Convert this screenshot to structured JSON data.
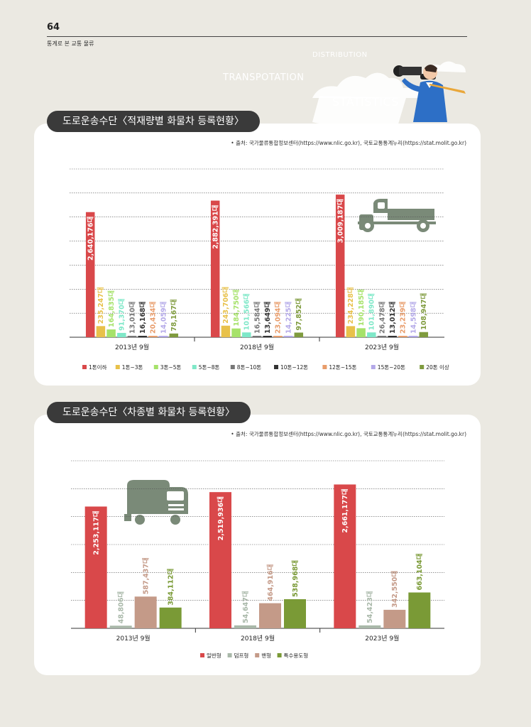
{
  "header": {
    "page_number": "64",
    "subtitle": "통계로 본 교통 물류"
  },
  "decoration": {
    "word1": "DISTRIBUTION",
    "word2": "TRANSPOTATION",
    "word3": "STATISTICS"
  },
  "section1": {
    "title": "도로운송수단〈적재량별 화물차 등록현황〉",
    "source": "• 출처: 국가물류통합정보센터(https://www.nlic.go.kr), 국토교통통계누리(https://stat.molit.go.kr)"
  },
  "section2": {
    "title": "도로운송수단〈차종별 화물차 등록현황〉",
    "source": "• 출처: 국가물류통합정보센터(https://www.nlic.go.kr), 국토교통통계누리(https://stat.molit.go.kr)"
  },
  "chart_data": [
    {
      "type": "bar",
      "title": "도로운송수단〈적재량별 화물차 등록현황〉",
      "categories": [
        "2013년 9월",
        "2018년 9월",
        "2023년 9월"
      ],
      "unit_suffix": "대",
      "grid": true,
      "legend_position": "bottom",
      "ylim": [
        0,
        3550000
      ],
      "series": [
        {
          "name": "1톤이하",
          "color": "#d9484a",
          "values": [
            2640176,
            2882391,
            3009187
          ],
          "labels": [
            "2,640,176대",
            "2,882,391대",
            "3,009,187대"
          ]
        },
        {
          "name": "1톤~3톤",
          "color": "#e8c14a",
          "values": [
            235247,
            243706,
            234228
          ],
          "labels": [
            "235,247대",
            "243,706대",
            "234,228대"
          ]
        },
        {
          "name": "3톤~5톤",
          "color": "#a6e26a",
          "values": [
            164835,
            184750,
            190185
          ],
          "labels": [
            "164,835대",
            "184,750대",
            "190,185대"
          ]
        },
        {
          "name": "5톤~8톤",
          "color": "#7fe8c8",
          "values": [
            91370,
            101566,
            101890
          ],
          "labels": [
            "91,370대",
            "101,566대",
            "101,890대"
          ]
        },
        {
          "name": "8톤~10톤",
          "color": "#777777",
          "values": [
            13010,
            16584,
            26478
          ],
          "labels": [
            "13,010대",
            "16,584대",
            "26,478대"
          ]
        },
        {
          "name": "10톤~12톤",
          "color": "#333333",
          "values": [
            16168,
            13649,
            13012
          ],
          "labels": [
            "16,168대",
            "13,649대",
            "13,012대"
          ]
        },
        {
          "name": "12톤~15톤",
          "color": "#e89c6a",
          "values": [
            20434,
            23094,
            23239
          ],
          "labels": [
            "20,434대",
            "23,094대",
            "23,239대"
          ]
        },
        {
          "name": "15톤~20톤",
          "color": "#b3a8e8",
          "values": [
            14059,
            14225,
            14598
          ],
          "labels": [
            "14,059대",
            "14,225대",
            "14,598대"
          ]
        },
        {
          "name": "20톤 이상",
          "color": "#7f9b3e",
          "values": [
            78167,
            97852,
            108947
          ],
          "labels": [
            "78,167대",
            "97,852대",
            "108,947대"
          ]
        }
      ]
    },
    {
      "type": "bar",
      "title": "도로운송수단〈차종별 화물차 등록현황〉",
      "categories": [
        "2013년 9월",
        "2018년 9월",
        "2023년 9월"
      ],
      "unit_suffix": "대",
      "grid": true,
      "legend_position": "bottom",
      "ylim": [
        0,
        3100000
      ],
      "series": [
        {
          "name": "일반형",
          "color": "#d9484a",
          "values": [
            2253117,
            2519936,
            2661177
          ],
          "labels": [
            "2,253,117대",
            "2,519,936대",
            "2,661,177대"
          ]
        },
        {
          "name": "덤프형",
          "color": "#a9b8a9",
          "values": [
            48806,
            54647,
            54423
          ],
          "labels": [
            "48,806대",
            "54,647대",
            "54,423대"
          ]
        },
        {
          "name": "밴형",
          "color": "#c49a88",
          "values": [
            587437,
            464916,
            342550
          ],
          "labels": [
            "587,437대",
            "464,916대",
            "342,550대"
          ]
        },
        {
          "name": "특수용도형",
          "color": "#7a9a36",
          "values": [
            384112,
            538968,
            663104
          ],
          "labels": [
            "384,112대",
            "538,968대",
            "663,104대"
          ]
        }
      ]
    }
  ]
}
